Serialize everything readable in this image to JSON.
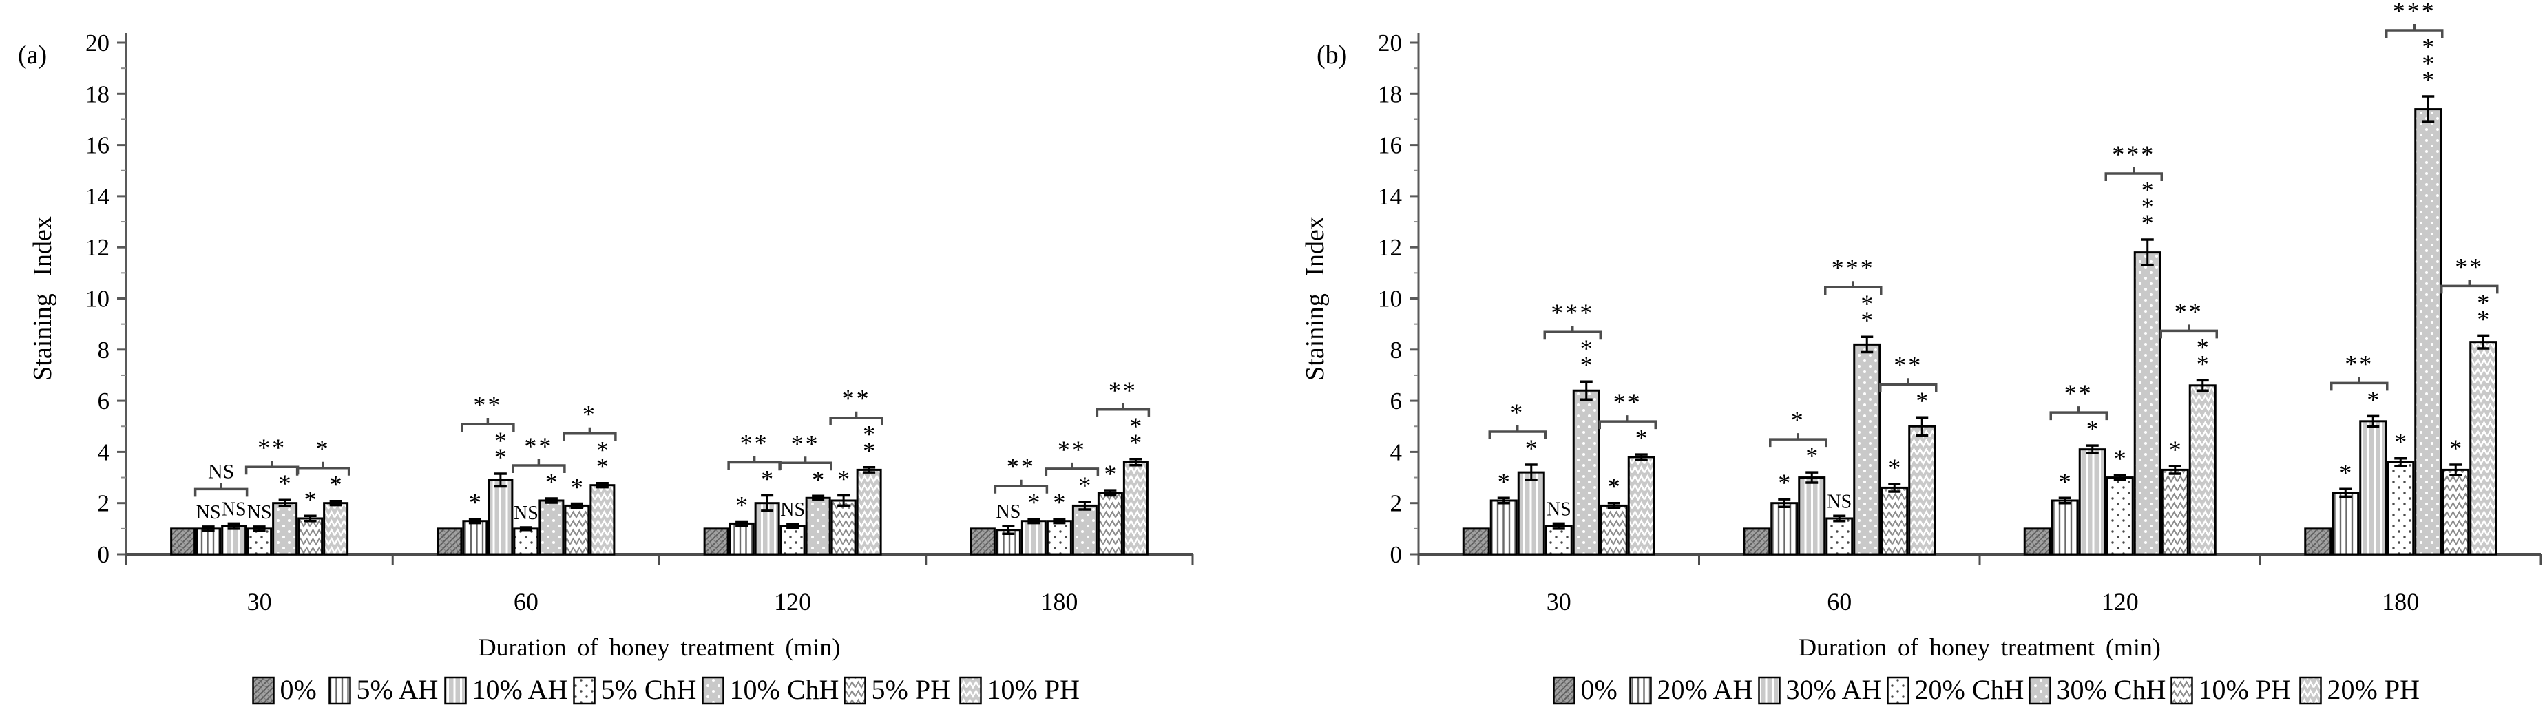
{
  "colors": {
    "background": "#ffffff",
    "bar_outline": "#000000",
    "axis": "#595959",
    "light_gray_fill": "#c9c9c9",
    "mid_gray_fill": "#a2a2a2",
    "annotation": "#000000"
  },
  "chart_data": [
    {
      "type": "bar",
      "panel_label": "(a)",
      "title": "",
      "xlabel": "Duration of honey treatment (min)",
      "ylabel": "Staining Index",
      "ylim": [
        0,
        20
      ],
      "ytick_step": 2,
      "ytick_labels": [
        "0",
        "2",
        "4",
        "6",
        "8",
        "10",
        "12",
        "14",
        "16",
        "18",
        "20"
      ],
      "grid": false,
      "legend_position": "bottom",
      "categories": [
        "30",
        "60",
        "120",
        "180"
      ],
      "series": [
        {
          "name": "0%",
          "pattern": "diag-hatch-gray",
          "values": [
            1.0,
            1.0,
            1.0,
            1.0
          ],
          "errors": [
            0,
            0,
            0,
            0
          ],
          "sig": [
            "",
            "",
            "",
            ""
          ]
        },
        {
          "name": "5% AH",
          "pattern": "vlines-white",
          "values": [
            1.0,
            1.3,
            1.2,
            0.95
          ],
          "errors": [
            0.08,
            0.08,
            0.08,
            0.15
          ],
          "sig": [
            "NS",
            "*",
            "*",
            "NS"
          ]
        },
        {
          "name": "10% AH",
          "pattern": "vlines-gray",
          "values": [
            1.1,
            2.9,
            2.0,
            1.3
          ],
          "errors": [
            0.1,
            0.25,
            0.3,
            0.08
          ],
          "sig": [
            "NS",
            "**",
            "*",
            "*"
          ]
        },
        {
          "name": "5% ChH",
          "pattern": "dots-white",
          "values": [
            1.0,
            1.0,
            1.1,
            1.3
          ],
          "errors": [
            0.08,
            0.05,
            0.08,
            0.08
          ],
          "sig": [
            "NS",
            "NS",
            "NS",
            "*"
          ]
        },
        {
          "name": "10% ChH",
          "pattern": "dots-gray",
          "values": [
            2.0,
            2.1,
            2.2,
            1.9
          ],
          "errors": [
            0.12,
            0.08,
            0.08,
            0.15
          ],
          "sig": [
            "*",
            "*",
            "*",
            "*"
          ]
        },
        {
          "name": "5% PH",
          "pattern": "zigzag-white",
          "values": [
            1.4,
            1.9,
            2.1,
            2.4
          ],
          "errors": [
            0.1,
            0.08,
            0.2,
            0.1
          ],
          "sig": [
            "*",
            "*",
            "*",
            "*"
          ]
        },
        {
          "name": "10% PH",
          "pattern": "zigzag-gray",
          "values": [
            2.0,
            2.7,
            3.3,
            3.6
          ],
          "errors": [
            0.08,
            0.08,
            0.1,
            0.12
          ],
          "sig": [
            "*",
            "**",
            "**",
            "**"
          ]
        }
      ],
      "pair_brackets": [
        {
          "between": [
            1,
            2
          ],
          "pair": [
            "5% AH",
            "10% AH"
          ],
          "labels": [
            "NS",
            "**",
            "**",
            "**"
          ]
        },
        {
          "between": [
            3,
            4
          ],
          "pair": [
            "5% ChH",
            "10% ChH"
          ],
          "labels": [
            "**",
            "**",
            "**",
            "**"
          ]
        },
        {
          "between": [
            5,
            6
          ],
          "pair": [
            "5% PH",
            "10% PH"
          ],
          "labels": [
            "*",
            "*",
            "**",
            "**"
          ]
        }
      ]
    },
    {
      "type": "bar",
      "panel_label": "(b)",
      "title": "",
      "xlabel": "Duration of honey treatment (min)",
      "ylabel": "Staining Index",
      "ylim": [
        0,
        20
      ],
      "ytick_step": 2,
      "ytick_labels": [
        "0",
        "2",
        "4",
        "6",
        "8",
        "10",
        "12",
        "14",
        "16",
        "18",
        "20"
      ],
      "grid": false,
      "legend_position": "bottom",
      "categories": [
        "30",
        "60",
        "120",
        "180"
      ],
      "series": [
        {
          "name": "0%",
          "pattern": "diag-hatch-gray",
          "values": [
            1.0,
            1.0,
            1.0,
            1.0
          ],
          "errors": [
            0,
            0,
            0,
            0
          ],
          "sig": [
            "",
            "",
            "",
            ""
          ]
        },
        {
          "name": "20% AH",
          "pattern": "vlines-white",
          "values": [
            2.1,
            2.0,
            2.1,
            2.4
          ],
          "errors": [
            0.1,
            0.15,
            0.1,
            0.15
          ],
          "sig": [
            "*",
            "*",
            "*",
            "*"
          ]
        },
        {
          "name": "30% AH",
          "pattern": "vlines-gray",
          "values": [
            3.2,
            3.0,
            4.1,
            5.2
          ],
          "errors": [
            0.3,
            0.2,
            0.15,
            0.2
          ],
          "sig": [
            "*",
            "*",
            "*",
            "*"
          ]
        },
        {
          "name": "20% ChH",
          "pattern": "dots-white",
          "values": [
            1.1,
            1.4,
            3.0,
            3.6
          ],
          "errors": [
            0.1,
            0.1,
            0.1,
            0.15
          ],
          "sig": [
            "NS",
            "NS",
            "*",
            "*"
          ]
        },
        {
          "name": "30% ChH",
          "pattern": "dots-gray",
          "values": [
            6.4,
            8.2,
            11.8,
            17.4
          ],
          "errors": [
            0.35,
            0.3,
            0.5,
            0.5
          ],
          "sig": [
            "**",
            "**",
            "***",
            "***"
          ]
        },
        {
          "name": "10% PH",
          "pattern": "zigzag-white",
          "values": [
            1.9,
            2.6,
            3.3,
            3.3
          ],
          "errors": [
            0.1,
            0.15,
            0.15,
            0.2
          ],
          "sig": [
            "*",
            "*",
            "*",
            "*"
          ]
        },
        {
          "name": "20% PH",
          "pattern": "zigzag-gray",
          "values": [
            3.8,
            5.0,
            6.6,
            8.3
          ],
          "errors": [
            0.1,
            0.35,
            0.2,
            0.25
          ],
          "sig": [
            "*",
            "*",
            "**",
            "**"
          ]
        }
      ],
      "pair_brackets": [
        {
          "between": [
            1,
            2
          ],
          "pair": [
            "20% AH",
            "30% AH"
          ],
          "labels": [
            "*",
            "*",
            "**",
            "**"
          ]
        },
        {
          "between": [
            3,
            4
          ],
          "pair": [
            "20% ChH",
            "30% ChH"
          ],
          "labels": [
            "***",
            "***",
            "***",
            "***"
          ]
        },
        {
          "between": [
            5,
            6
          ],
          "pair": [
            "10% PH",
            "20% PH"
          ],
          "labels": [
            "**",
            "**",
            "**",
            "**"
          ]
        }
      ]
    }
  ]
}
